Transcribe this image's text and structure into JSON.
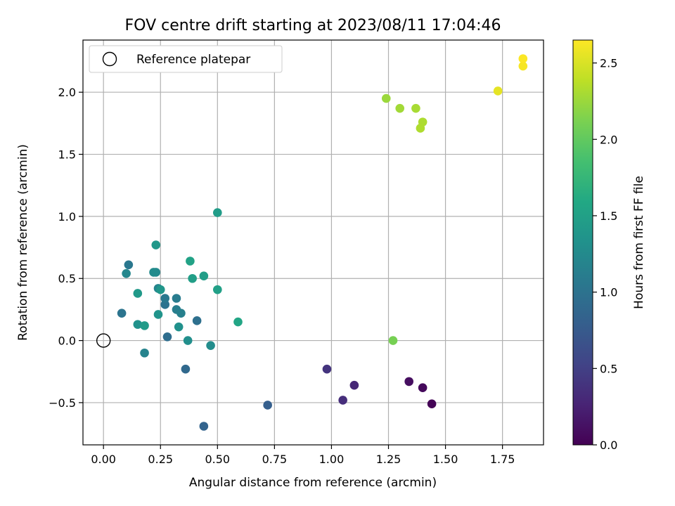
{
  "chart_data": {
    "type": "scatter",
    "title": "FOV centre drift starting at 2023/08/11 17:04:46",
    "xlabel": "Angular distance from reference (arcmin)",
    "ylabel": "Rotation from reference (arcmin)",
    "xlim": [
      -0.09,
      1.93
    ],
    "ylim": [
      -0.84,
      2.42
    ],
    "x_ticks": [
      0.0,
      0.25,
      0.5,
      0.75,
      1.0,
      1.25,
      1.5,
      1.75
    ],
    "x_tick_labels": [
      "0.00",
      "0.25",
      "0.50",
      "0.75",
      "1.00",
      "1.25",
      "1.50",
      "1.75"
    ],
    "y_ticks": [
      -0.5,
      0.0,
      0.5,
      1.0,
      1.5,
      2.0
    ],
    "y_tick_labels": [
      "−0.5",
      "0.0",
      "0.5",
      "1.0",
      "1.5",
      "2.0"
    ],
    "grid": true,
    "colormap": "viridis",
    "colorbar": {
      "label": "Hours from first FF file",
      "range": [
        0.0,
        2.65
      ],
      "ticks": [
        0.0,
        0.5,
        1.0,
        1.5,
        2.0,
        2.5
      ],
      "tick_labels": [
        "0.0",
        "0.5",
        "1.0",
        "1.5",
        "2.0",
        "2.5"
      ]
    },
    "legend": {
      "position": "upper-left",
      "entries": [
        "Reference platepar"
      ]
    },
    "reference_point": {
      "x": 0.0,
      "y": 0.0
    },
    "points": [
      {
        "x": 1.44,
        "y": -0.51,
        "hours": 0.02
      },
      {
        "x": 1.4,
        "y": -0.38,
        "hours": 0.06
      },
      {
        "x": 1.34,
        "y": -0.33,
        "hours": 0.1
      },
      {
        "x": 1.1,
        "y": -0.36,
        "hours": 0.3
      },
      {
        "x": 1.05,
        "y": -0.48,
        "hours": 0.35
      },
      {
        "x": 0.98,
        "y": -0.23,
        "hours": 0.4
      },
      {
        "x": 0.72,
        "y": -0.52,
        "hours": 0.8
      },
      {
        "x": 0.44,
        "y": -0.69,
        "hours": 0.85
      },
      {
        "x": 0.36,
        "y": -0.23,
        "hours": 0.9
      },
      {
        "x": 0.28,
        "y": 0.03,
        "hours": 0.95
      },
      {
        "x": 0.41,
        "y": 0.16,
        "hours": 0.97
      },
      {
        "x": 0.27,
        "y": 0.29,
        "hours": 1.0
      },
      {
        "x": 0.08,
        "y": 0.22,
        "hours": 1.02
      },
      {
        "x": 0.11,
        "y": 0.61,
        "hours": 1.05
      },
      {
        "x": 0.27,
        "y": 0.34,
        "hours": 1.06
      },
      {
        "x": 0.32,
        "y": 0.34,
        "hours": 1.1
      },
      {
        "x": 0.32,
        "y": 0.25,
        "hours": 1.12
      },
      {
        "x": 0.34,
        "y": 0.22,
        "hours": 1.15
      },
      {
        "x": 0.18,
        "y": -0.1,
        "hours": 1.18
      },
      {
        "x": 0.24,
        "y": 0.42,
        "hours": 1.2
      },
      {
        "x": 0.1,
        "y": 0.54,
        "hours": 1.22
      },
      {
        "x": 0.23,
        "y": 0.55,
        "hours": 1.24
      },
      {
        "x": 0.22,
        "y": 0.55,
        "hours": 1.26
      },
      {
        "x": 0.47,
        "y": -0.04,
        "hours": 1.28
      },
      {
        "x": 0.37,
        "y": 0.0,
        "hours": 1.3
      },
      {
        "x": 0.33,
        "y": 0.11,
        "hours": 1.32
      },
      {
        "x": 0.15,
        "y": 0.13,
        "hours": 1.34
      },
      {
        "x": 0.24,
        "y": 0.21,
        "hours": 1.36
      },
      {
        "x": 0.25,
        "y": 0.41,
        "hours": 1.38
      },
      {
        "x": 0.23,
        "y": 0.77,
        "hours": 1.4
      },
      {
        "x": 0.15,
        "y": 0.38,
        "hours": 1.42
      },
      {
        "x": 0.18,
        "y": 0.12,
        "hours": 1.44
      },
      {
        "x": 0.5,
        "y": 1.03,
        "hours": 1.45
      },
      {
        "x": 0.44,
        "y": 0.52,
        "hours": 1.47
      },
      {
        "x": 0.39,
        "y": 0.5,
        "hours": 1.48
      },
      {
        "x": 0.5,
        "y": 0.41,
        "hours": 1.5
      },
      {
        "x": 0.38,
        "y": 0.64,
        "hours": 1.52
      },
      {
        "x": 0.59,
        "y": 0.15,
        "hours": 1.55
      },
      {
        "x": 1.27,
        "y": 0.0,
        "hours": 2.1
      },
      {
        "x": 1.24,
        "y": 1.95,
        "hours": 2.25
      },
      {
        "x": 1.3,
        "y": 1.87,
        "hours": 2.28
      },
      {
        "x": 1.37,
        "y": 1.87,
        "hours": 2.3
      },
      {
        "x": 1.4,
        "y": 1.76,
        "hours": 2.32
      },
      {
        "x": 1.39,
        "y": 1.71,
        "hours": 2.33
      },
      {
        "x": 1.73,
        "y": 2.01,
        "hours": 2.55
      },
      {
        "x": 1.84,
        "y": 2.21,
        "hours": 2.62
      },
      {
        "x": 1.84,
        "y": 2.27,
        "hours": 2.64
      }
    ]
  }
}
